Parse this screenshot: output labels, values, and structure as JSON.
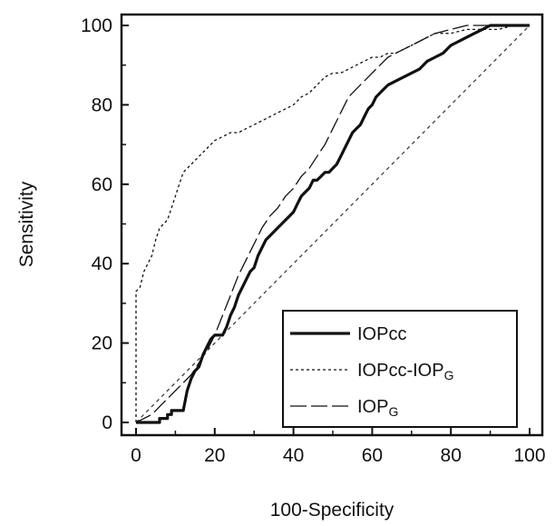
{
  "chart_data": {
    "type": "line",
    "xlabel": "100-Specificity",
    "ylabel": "Sensitivity",
    "xlim": [
      0,
      100
    ],
    "ylim": [
      0,
      100
    ],
    "xticks": [
      0,
      20,
      40,
      60,
      80,
      100
    ],
    "yticks": [
      0,
      20,
      40,
      60,
      80,
      100
    ],
    "grid": false,
    "legend_position": "bottom-right",
    "reference_line": {
      "style": "dashed",
      "from": [
        0,
        0
      ],
      "to": [
        100,
        100
      ]
    },
    "series": [
      {
        "name_main": "IOPcc",
        "name_sub": "",
        "style": "solid-thick",
        "points": [
          [
            0,
            0
          ],
          [
            4,
            0
          ],
          [
            6,
            0
          ],
          [
            6,
            1
          ],
          [
            8,
            1
          ],
          [
            8,
            2
          ],
          [
            9,
            2
          ],
          [
            9,
            3
          ],
          [
            12,
            3
          ],
          [
            13,
            8
          ],
          [
            14,
            11
          ],
          [
            15,
            13
          ],
          [
            16,
            14
          ],
          [
            17,
            17
          ],
          [
            18,
            19
          ],
          [
            19,
            21
          ],
          [
            20,
            22
          ],
          [
            22,
            22
          ],
          [
            23,
            24
          ],
          [
            24,
            27
          ],
          [
            25,
            29
          ],
          [
            26,
            32
          ],
          [
            27,
            34
          ],
          [
            28,
            36
          ],
          [
            29,
            38
          ],
          [
            30,
            39
          ],
          [
            31,
            42
          ],
          [
            32,
            44
          ],
          [
            33,
            46
          ],
          [
            34,
            47
          ],
          [
            35,
            48
          ],
          [
            36,
            49
          ],
          [
            37,
            50
          ],
          [
            38,
            51
          ],
          [
            39,
            52
          ],
          [
            40,
            53
          ],
          [
            41,
            55
          ],
          [
            42,
            57
          ],
          [
            43,
            58
          ],
          [
            44,
            59
          ],
          [
            45,
            61
          ],
          [
            46,
            61
          ],
          [
            47,
            62
          ],
          [
            48,
            63
          ],
          [
            49,
            63
          ],
          [
            50,
            64
          ],
          [
            51,
            65
          ],
          [
            52,
            67
          ],
          [
            53,
            69
          ],
          [
            54,
            71
          ],
          [
            55,
            73
          ],
          [
            56,
            74
          ],
          [
            57,
            75
          ],
          [
            58,
            77
          ],
          [
            59,
            79
          ],
          [
            60,
            80
          ],
          [
            61,
            82
          ],
          [
            62,
            83
          ],
          [
            63,
            84
          ],
          [
            64,
            85
          ],
          [
            66,
            86
          ],
          [
            68,
            87
          ],
          [
            70,
            88
          ],
          [
            72,
            89
          ],
          [
            74,
            91
          ],
          [
            76,
            92
          ],
          [
            78,
            93
          ],
          [
            80,
            95
          ],
          [
            82,
            96
          ],
          [
            84,
            97
          ],
          [
            86,
            98
          ],
          [
            88,
            99
          ],
          [
            90,
            100
          ],
          [
            100,
            100
          ]
        ]
      },
      {
        "name_main": "IOPcc-IOP",
        "name_sub": "G",
        "style": "dotted",
        "points": [
          [
            0,
            0
          ],
          [
            0,
            6
          ],
          [
            0,
            33
          ],
          [
            1,
            34
          ],
          [
            2,
            38
          ],
          [
            3,
            40
          ],
          [
            4,
            42
          ],
          [
            5,
            46
          ],
          [
            6,
            49
          ],
          [
            7,
            50
          ],
          [
            8,
            51
          ],
          [
            9,
            54
          ],
          [
            10,
            57
          ],
          [
            11,
            60
          ],
          [
            12,
            63
          ],
          [
            13,
            64
          ],
          [
            14,
            65
          ],
          [
            15,
            66
          ],
          [
            16,
            67
          ],
          [
            17,
            68
          ],
          [
            18,
            69
          ],
          [
            19,
            70
          ],
          [
            20,
            71
          ],
          [
            22,
            72
          ],
          [
            24,
            73
          ],
          [
            26,
            73
          ],
          [
            28,
            74
          ],
          [
            30,
            75
          ],
          [
            32,
            76
          ],
          [
            34,
            77
          ],
          [
            36,
            78
          ],
          [
            38,
            79
          ],
          [
            40,
            80
          ],
          [
            42,
            82
          ],
          [
            44,
            83
          ],
          [
            46,
            85
          ],
          [
            48,
            87
          ],
          [
            50,
            88
          ],
          [
            52,
            88
          ],
          [
            54,
            89
          ],
          [
            56,
            90
          ],
          [
            58,
            91
          ],
          [
            60,
            92
          ],
          [
            62,
            92
          ],
          [
            64,
            93
          ],
          [
            66,
            93
          ],
          [
            68,
            94
          ],
          [
            70,
            95
          ],
          [
            72,
            96
          ],
          [
            74,
            97
          ],
          [
            76,
            98
          ],
          [
            78,
            98
          ],
          [
            80,
            98
          ],
          [
            84,
            99
          ],
          [
            88,
            99
          ],
          [
            92,
            99
          ],
          [
            96,
            100
          ],
          [
            100,
            100
          ]
        ]
      },
      {
        "name_main": "IOP",
        "name_sub": "G",
        "style": "long-dash",
        "points": [
          [
            0,
            0
          ],
          [
            4,
            2
          ],
          [
            8,
            6
          ],
          [
            12,
            10
          ],
          [
            14,
            12
          ],
          [
            16,
            15
          ],
          [
            18,
            18
          ],
          [
            20,
            22
          ],
          [
            22,
            27
          ],
          [
            24,
            32
          ],
          [
            26,
            37
          ],
          [
            28,
            41
          ],
          [
            30,
            45
          ],
          [
            32,
            49
          ],
          [
            34,
            52
          ],
          [
            36,
            54
          ],
          [
            38,
            57
          ],
          [
            40,
            59
          ],
          [
            42,
            62
          ],
          [
            44,
            64
          ],
          [
            46,
            67
          ],
          [
            48,
            70
          ],
          [
            50,
            74
          ],
          [
            52,
            78
          ],
          [
            54,
            82
          ],
          [
            56,
            84
          ],
          [
            58,
            86
          ],
          [
            60,
            88
          ],
          [
            62,
            90
          ],
          [
            64,
            92
          ],
          [
            66,
            93
          ],
          [
            68,
            94
          ],
          [
            70,
            95
          ],
          [
            72,
            96
          ],
          [
            74,
            97
          ],
          [
            76,
            98
          ],
          [
            80,
            99
          ],
          [
            84,
            100
          ],
          [
            100,
            100
          ]
        ]
      }
    ]
  }
}
